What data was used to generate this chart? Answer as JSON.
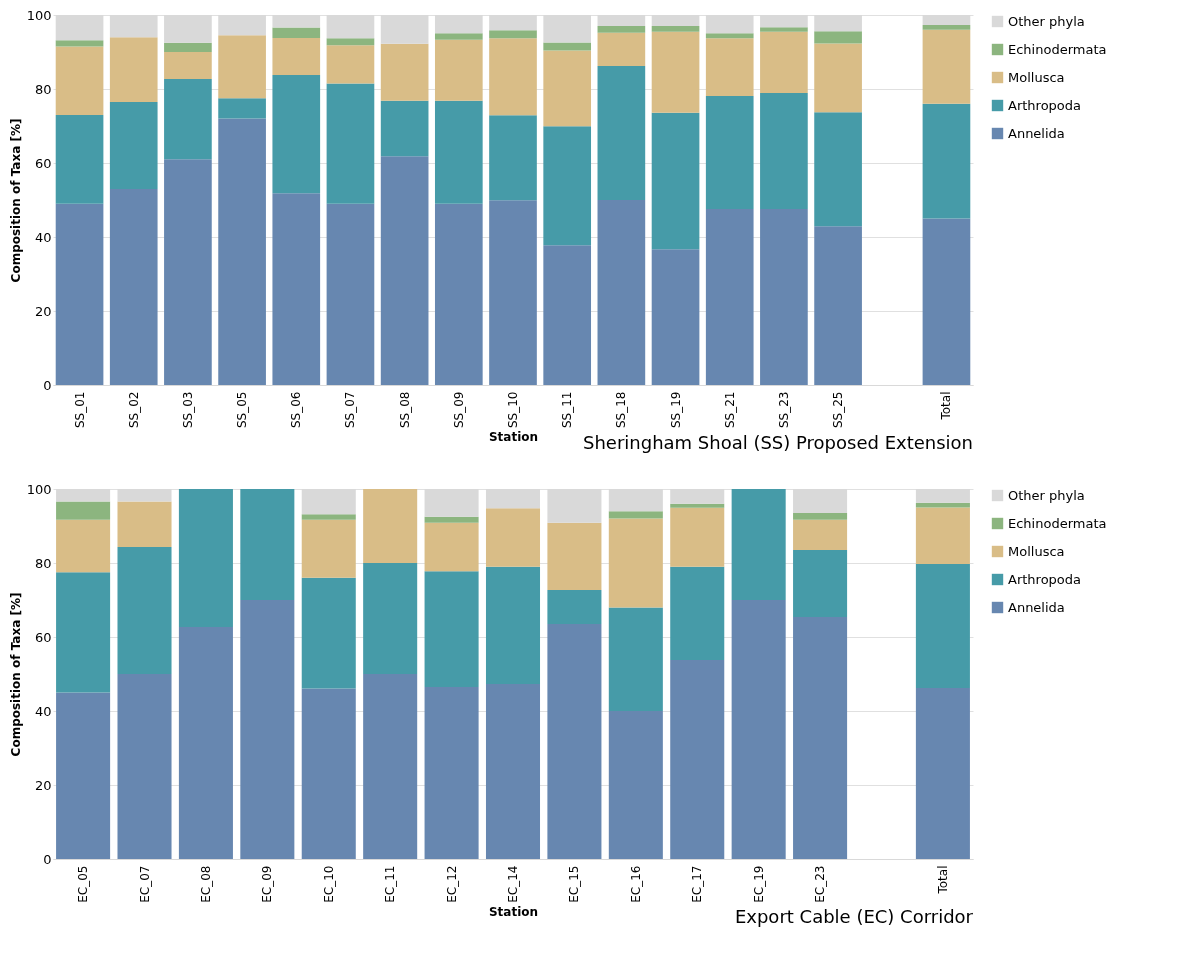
{
  "chart_data": [
    {
      "type": "bar",
      "stacked": true,
      "title": "Sheringham Shoal (SS) Proposed Extension",
      "xlabel": "Station",
      "ylabel": "Composition of Taxa [%]",
      "categories": [
        "SS_01",
        "SS_02",
        "SS_03",
        "SS_05",
        "SS_06",
        "SS_07",
        "SS_08",
        "SS_09",
        "SS_10",
        "SS_11",
        "SS_18",
        "SS_19",
        "SS_21",
        "SS_23",
        "SS_25",
        null,
        "Total"
      ],
      "ylim": [
        0,
        100
      ],
      "yticks": [
        0,
        20,
        40,
        60,
        80,
        100
      ],
      "grid": "y",
      "legend": "top right",
      "series": [
        {
          "name": "Annelida",
          "color": "#6787b0",
          "values": [
            49,
            53,
            61,
            72,
            51.8,
            49,
            61.8,
            49,
            49.9,
            37.8,
            50,
            36.7,
            47.6,
            47.6,
            42.9,
            null,
            45
          ]
        },
        {
          "name": "Arthropoda",
          "color": "#469ba8",
          "values": [
            24,
            23.5,
            21.7,
            5.5,
            32,
            32.5,
            15,
            27.8,
            23,
            32.1,
            36.2,
            36.9,
            30.5,
            31.3,
            30.8,
            null,
            31
          ]
        },
        {
          "name": "Mollusca",
          "color": "#d9bd87",
          "values": [
            18.5,
            17.5,
            7.3,
            17,
            10,
            10.3,
            15.4,
            16.5,
            20.8,
            20.5,
            9,
            21.9,
            15.6,
            16.6,
            18.6,
            null,
            20
          ]
        },
        {
          "name": "Echinodermata",
          "color": "#8cb57f",
          "values": [
            1.7,
            0,
            2.5,
            0,
            2.8,
            1.9,
            0,
            1.8,
            2.2,
            2.2,
            1.8,
            1.5,
            1.4,
            1.2,
            3.3,
            null,
            1.3
          ]
        },
        {
          "name": "Other phyla",
          "color": "#d9d9d9",
          "values": [
            6.8,
            6,
            7.5,
            5.5,
            3.4,
            6.3,
            7.8,
            4.9,
            4.1,
            7.4,
            3,
            3,
            4.9,
            3.3,
            4.4,
            null,
            2.7
          ]
        }
      ]
    },
    {
      "type": "bar",
      "stacked": true,
      "title": "Export Cable (EC) Corridor",
      "xlabel": "Station",
      "ylabel": "Composition of Taxa [%]",
      "categories": [
        "EC_05",
        "EC_07",
        "EC_08",
        "EC_09",
        "EC_10",
        "EC_11",
        "EC_12",
        "EC_14",
        "EC_15",
        "EC_16",
        "EC_17",
        "EC_19",
        "EC_23",
        null,
        "Total"
      ],
      "ylim": [
        0,
        100
      ],
      "yticks": [
        0,
        20,
        40,
        60,
        80,
        100
      ],
      "grid": "y",
      "legend": "top right",
      "series": [
        {
          "name": "Annelida",
          "color": "#6787b0",
          "values": [
            45,
            50,
            62.7,
            70,
            46.1,
            50,
            46.5,
            47.3,
            63.5,
            40,
            53.8,
            70,
            65.4,
            null,
            46.2
          ]
        },
        {
          "name": "Arthropoda",
          "color": "#469ba8",
          "values": [
            32.5,
            34.3,
            37.3,
            30,
            29.9,
            30,
            31.3,
            31.7,
            9.2,
            28,
            25.2,
            30,
            18.1,
            null,
            33.5
          ]
        },
        {
          "name": "Mollusca",
          "color": "#d9bd87",
          "values": [
            14.2,
            12.3,
            0,
            0,
            15.7,
            20,
            13.1,
            15.8,
            18.2,
            24,
            15.9,
            0,
            8.2,
            null,
            15.3
          ]
        },
        {
          "name": "Echinodermata",
          "color": "#8cb57f",
          "values": [
            4.9,
            0,
            0,
            0,
            1.5,
            0,
            1.6,
            0,
            0,
            2,
            1.1,
            0,
            1.8,
            null,
            1.3
          ]
        },
        {
          "name": "Other phyla",
          "color": "#d9d9d9",
          "values": [
            3.4,
            3.4,
            0,
            0,
            6.8,
            0,
            7.5,
            5.2,
            9.1,
            6,
            4,
            0,
            6.5,
            null,
            3.7
          ]
        }
      ]
    }
  ]
}
